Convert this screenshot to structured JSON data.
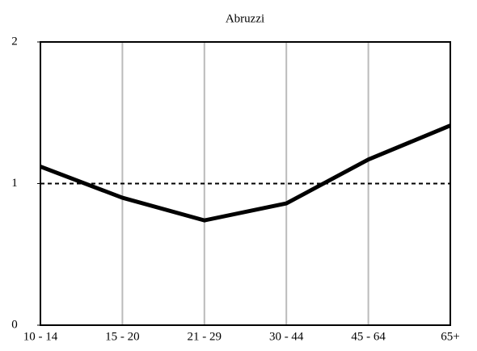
{
  "chart_data": {
    "type": "line",
    "title": "Abruzzi",
    "categories": [
      "10 - 14",
      "15 - 20",
      "21 - 29",
      "30 - 44",
      "45 - 64",
      "65+"
    ],
    "series": [
      {
        "color": "#000000",
        "values": [
          1.12,
          0.9,
          0.74,
          0.86,
          1.17,
          1.41
        ]
      }
    ],
    "ylim": [
      0,
      2
    ],
    "yticks": [
      0,
      1,
      2
    ],
    "reference_line": 1,
    "grid": true
  }
}
